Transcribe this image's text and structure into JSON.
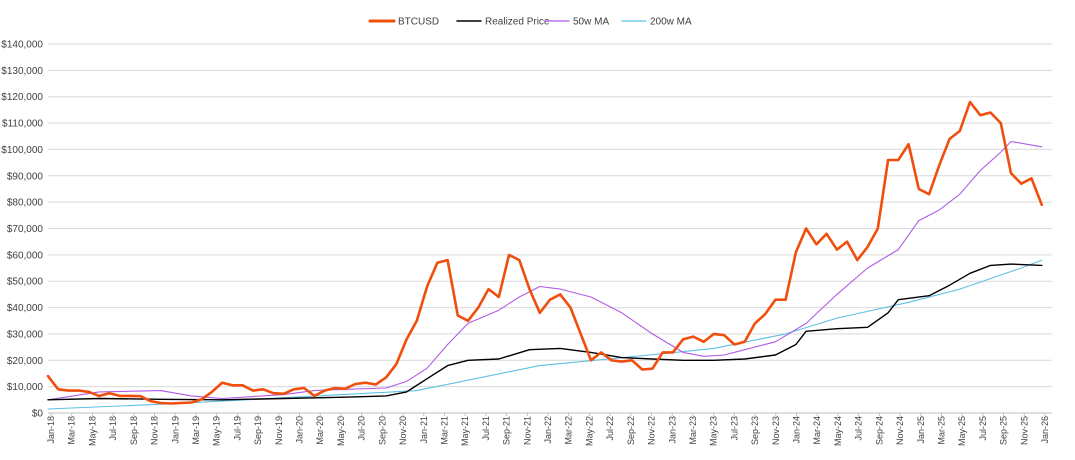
{
  "chart_data": {
    "type": "line",
    "title": "",
    "xlabel": "",
    "ylabel": "",
    "ylim": [
      0,
      140000
    ],
    "yticks": [
      "$0",
      "$10,000",
      "$20,000",
      "$30,000",
      "$40,000",
      "$50,000",
      "$60,000",
      "$70,000",
      "$80,000",
      "$90,000",
      "$100,000",
      "$110,000",
      "$120,000",
      "$130,000",
      "$140,000"
    ],
    "x_start": "2018-01",
    "x_end": "2026-03",
    "xticks": [
      "Jan-18",
      "Mar-18",
      "May-18",
      "Jul-18",
      "Sep-18",
      "Nov-18",
      "Jan-19",
      "Mar-19",
      "May-19",
      "Jul-19",
      "Sep-19",
      "Nov-19",
      "Jan-20",
      "Mar-20",
      "May-20",
      "Jul-20",
      "Sep-20",
      "Nov-20",
      "Jan-21",
      "Mar-21",
      "May-21",
      "Jul-21",
      "Sep-21",
      "Nov-21",
      "Jan-22",
      "Mar-22",
      "May-22",
      "Jul-22",
      "Sep-22",
      "Nov-22",
      "Jan-23",
      "Mar-23",
      "May-23",
      "Jul-23",
      "Sep-23",
      "Nov-23",
      "Jan-24",
      "Mar-24",
      "May-24",
      "Jul-24",
      "Sep-24",
      "Nov-24",
      "Jan-25",
      "Mar-25",
      "May-25",
      "Jul-25",
      "Sep-25",
      "Nov-25",
      "Jan-26"
    ],
    "grid": true,
    "legend_position": "top-center",
    "series": [
      {
        "name": "BTCUSD",
        "color": "#f04e0c",
        "x": [
          "2018-01",
          "2018-02",
          "2018-03",
          "2018-04",
          "2018-05",
          "2018-06",
          "2018-07",
          "2018-08",
          "2018-09",
          "2018-10",
          "2018-11",
          "2018-12",
          "2019-01",
          "2019-02",
          "2019-03",
          "2019-04",
          "2019-05",
          "2019-06",
          "2019-07",
          "2019-08",
          "2019-09",
          "2019-10",
          "2019-11",
          "2019-12",
          "2020-01",
          "2020-02",
          "2020-03",
          "2020-04",
          "2020-05",
          "2020-06",
          "2020-07",
          "2020-08",
          "2020-09",
          "2020-10",
          "2020-11",
          "2020-12",
          "2021-01",
          "2021-02",
          "2021-03",
          "2021-04",
          "2021-05",
          "2021-06",
          "2021-07",
          "2021-08",
          "2021-09",
          "2021-10",
          "2021-11",
          "2021-12",
          "2022-01",
          "2022-02",
          "2022-03",
          "2022-04",
          "2022-05",
          "2022-06",
          "2022-07",
          "2022-08",
          "2022-09",
          "2022-10",
          "2022-11",
          "2022-12",
          "2023-01",
          "2023-02",
          "2023-03",
          "2023-04",
          "2023-05",
          "2023-06",
          "2023-07",
          "2023-08",
          "2023-09",
          "2023-10",
          "2023-11",
          "2023-12",
          "2024-01",
          "2024-02",
          "2024-03",
          "2024-04",
          "2024-05",
          "2024-06",
          "2024-07",
          "2024-08",
          "2024-09",
          "2024-10",
          "2024-11",
          "2024-12",
          "2025-01",
          "2025-02",
          "2025-03",
          "2025-04",
          "2025-05",
          "2025-06",
          "2025-07",
          "2025-08",
          "2025-09",
          "2025-10",
          "2025-11",
          "2025-12",
          "2026-01",
          "2026-02"
        ],
        "values": [
          14000,
          9000,
          8500,
          8500,
          8000,
          6500,
          7500,
          6500,
          6500,
          6400,
          4500,
          3800,
          3600,
          3800,
          4000,
          5200,
          8000,
          11500,
          10500,
          10500,
          8500,
          9000,
          7500,
          7300,
          9000,
          9500,
          6500,
          8500,
          9500,
          9200,
          11000,
          11500,
          10800,
          13500,
          18500,
          28000,
          35000,
          48000,
          57000,
          58000,
          37000,
          35000,
          40000,
          47000,
          44000,
          60000,
          58000,
          47000,
          38000,
          43000,
          45000,
          40000,
          30000,
          20000,
          23000,
          20000,
          19500,
          20000,
          16500,
          16800,
          23000,
          23000,
          28000,
          29000,
          27000,
          30000,
          29500,
          26000,
          27000,
          34000,
          37500,
          43000,
          43000,
          61000,
          70000,
          64000,
          68000,
          62000,
          65000,
          58000,
          63000,
          70000,
          96000,
          96000,
          102000,
          85000,
          83000,
          94000,
          104000,
          107000,
          118000,
          113000,
          114000,
          110000,
          91000,
          87000,
          89000,
          79000
        ]
      },
      {
        "name": "Realized Price",
        "color": "#000000",
        "x": [
          "2018-01",
          "2018-06",
          "2018-12",
          "2019-06",
          "2019-12",
          "2020-06",
          "2020-10",
          "2020-12",
          "2021-02",
          "2021-04",
          "2021-06",
          "2021-09",
          "2021-12",
          "2022-03",
          "2022-06",
          "2022-09",
          "2022-12",
          "2023-03",
          "2023-06",
          "2023-09",
          "2023-12",
          "2024-02",
          "2024-03",
          "2024-06",
          "2024-09",
          "2024-11",
          "2024-12",
          "2025-03",
          "2025-05",
          "2025-07",
          "2025-09",
          "2025-11",
          "2026-02"
        ],
        "values": [
          5000,
          5500,
          5200,
          5000,
          5500,
          6000,
          6500,
          8000,
          13000,
          18000,
          20000,
          20500,
          24000,
          24500,
          23000,
          21000,
          20500,
          20000,
          20000,
          20500,
          22000,
          26000,
          31000,
          32000,
          32500,
          38000,
          43000,
          44500,
          48500,
          53000,
          56000,
          56500,
          56000
        ]
      },
      {
        "name": "50w MA",
        "color": "#b05be6",
        "x": [
          "2018-01",
          "2018-06",
          "2018-12",
          "2019-03",
          "2019-06",
          "2019-12",
          "2020-03",
          "2020-06",
          "2020-10",
          "2020-12",
          "2021-02",
          "2021-04",
          "2021-06",
          "2021-09",
          "2021-11",
          "2022-01",
          "2022-03",
          "2022-06",
          "2022-09",
          "2022-12",
          "2023-03",
          "2023-05",
          "2023-07",
          "2023-09",
          "2023-12",
          "2024-03",
          "2024-06",
          "2024-09",
          "2024-12",
          "2025-02",
          "2025-04",
          "2025-06",
          "2025-08",
          "2025-10",
          "2025-11",
          "2026-02"
        ],
        "values": [
          5000,
          8000,
          8500,
          6500,
          5500,
          7000,
          8500,
          9000,
          9500,
          12000,
          17000,
          26000,
          34000,
          39000,
          44000,
          48000,
          47000,
          44000,
          38000,
          30000,
          23000,
          21500,
          22000,
          24000,
          27000,
          34000,
          45000,
          55000,
          62000,
          73000,
          77000,
          83000,
          92000,
          99000,
          103000,
          101000
        ]
      },
      {
        "name": "200w MA",
        "color": "#5ec0e6",
        "x": [
          "2018-01",
          "2019-01",
          "2020-01",
          "2021-01",
          "2022-01",
          "2023-01",
          "2023-06",
          "2024-01",
          "2024-06",
          "2025-01",
          "2025-06",
          "2025-12",
          "2026-02"
        ],
        "values": [
          1500,
          3500,
          6000,
          8500,
          18000,
          22500,
          24500,
          30000,
          36000,
          42000,
          47000,
          55000,
          58000
        ]
      }
    ]
  }
}
